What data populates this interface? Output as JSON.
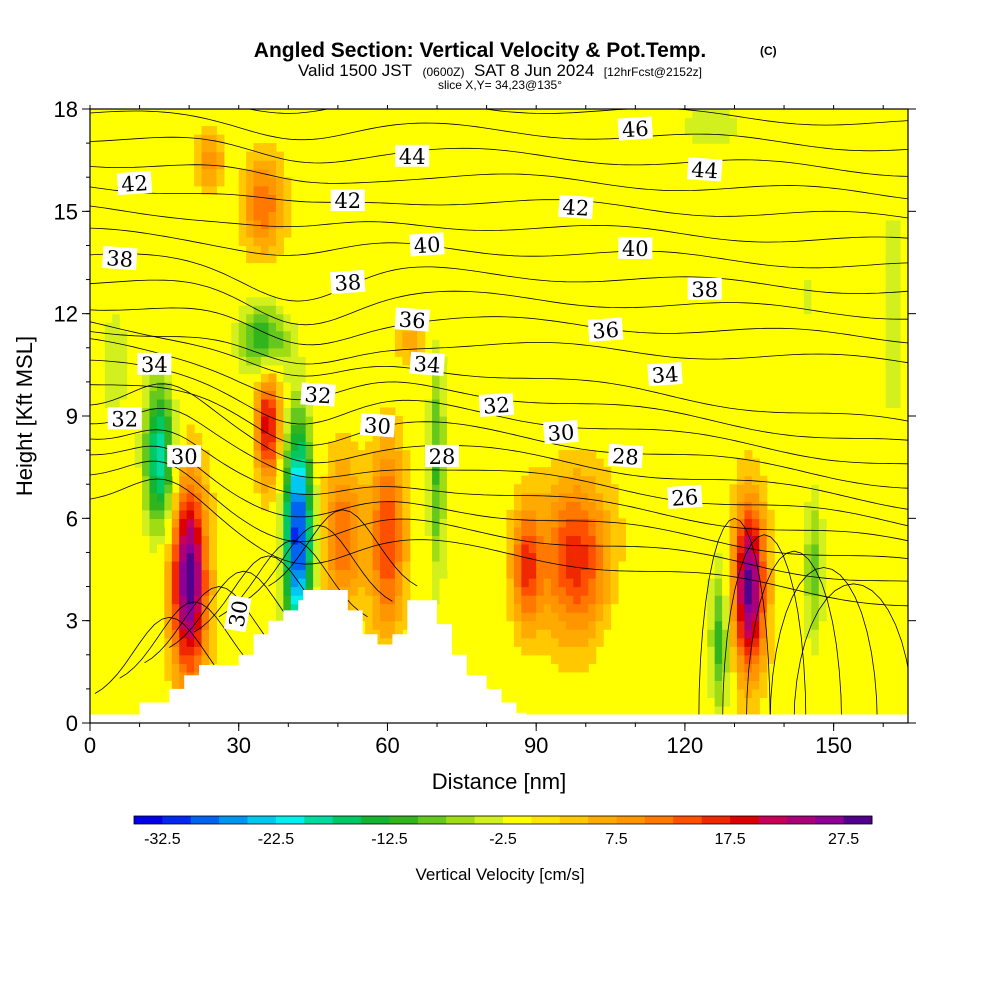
{
  "chart_data": {
    "type": "heatmap",
    "title": "Angled Section: Vertical Velocity & Pot.Temp.",
    "title_mark": "(C)",
    "subtitle_parts": [
      "Valid 1500 JST",
      "(0600Z)",
      "SAT 8 Jun 2024",
      "[12hrFcst@2152z]"
    ],
    "subtitle2": "slice X,Y= 34,23@135°",
    "xlabel": "Distance [nm]",
    "ylabel": "Height [Kft MSL]",
    "xlim": [
      0,
      165
    ],
    "ylim": [
      0,
      18
    ],
    "x_ticks": [
      "0",
      "30",
      "60",
      "90",
      "120",
      "150"
    ],
    "y_ticks": [
      "0",
      "3",
      "6",
      "9",
      "12",
      "15",
      "18"
    ],
    "colorbar": {
      "label": "Vertical Velocity [cm/s]",
      "ticks": [
        "-32.5",
        "-22.5",
        "-12.5",
        "-2.5",
        "7.5",
        "17.5",
        "27.5"
      ],
      "min": -35,
      "max": 30,
      "colors": [
        "#0000e8",
        "#0028f0",
        "#0064f0",
        "#0096f0",
        "#00c8f0",
        "#00f0f0",
        "#00dca0",
        "#00c864",
        "#14b432",
        "#32b41e",
        "#64c81e",
        "#a0dc14",
        "#d2f01e",
        "#ffff00",
        "#ffe600",
        "#ffc800",
        "#ffaa00",
        "#ff9600",
        "#ff7800",
        "#ff5000",
        "#f02800",
        "#dc0000",
        "#c8005a",
        "#aa0078",
        "#8c0096",
        "#50008c"
      ]
    },
    "background_w": 0.5,
    "w_cells": [
      {
        "x": 20,
        "y": 4.2,
        "rx": 3.5,
        "ry": 2.8,
        "w": 29
      },
      {
        "x": 36,
        "y": 8.8,
        "rx": 2.5,
        "ry": 1.7,
        "w": 19
      },
      {
        "x": 133,
        "y": 4.0,
        "rx": 3.2,
        "ry": 2.4,
        "w": 28
      },
      {
        "x": 98,
        "y": 4.8,
        "rx": 7,
        "ry": 2.3,
        "w": 16
      },
      {
        "x": 88,
        "y": 4.6,
        "rx": 3,
        "ry": 1.8,
        "w": 14
      },
      {
        "x": 60,
        "y": 5.4,
        "rx": 3.5,
        "ry": 2.8,
        "w": 15
      },
      {
        "x": 51,
        "y": 5.5,
        "rx": 4,
        "ry": 2.2,
        "w": 12
      },
      {
        "x": 35,
        "y": 15.2,
        "rx": 4,
        "ry": 1.4,
        "w": 12
      },
      {
        "x": 24,
        "y": 16.5,
        "rx": 3,
        "ry": 0.9,
        "w": 8
      },
      {
        "x": 65,
        "y": 11.2,
        "rx": 3,
        "ry": 0.8,
        "w": 6
      },
      {
        "x": 42,
        "y": 5.5,
        "rx": 2.8,
        "ry": 3.2,
        "w": -33
      },
      {
        "x": 14,
        "y": 7.8,
        "rx": 3,
        "ry": 2.2,
        "w": -20
      },
      {
        "x": 35,
        "y": 11.2,
        "rx": 5,
        "ry": 1.1,
        "w": -14
      },
      {
        "x": 70,
        "y": 7.5,
        "rx": 1.8,
        "ry": 3.5,
        "w": -11
      },
      {
        "x": 127,
        "y": 2.5,
        "rx": 2,
        "ry": 2.2,
        "w": -12
      },
      {
        "x": 146,
        "y": 4.5,
        "rx": 2,
        "ry": 2.5,
        "w": -9
      },
      {
        "x": 162,
        "y": 12,
        "rx": 3,
        "ry": 4,
        "w": -5
      },
      {
        "x": 125,
        "y": 17.5,
        "rx": 10,
        "ry": 1,
        "w": -4
      },
      {
        "x": 5,
        "y": 10.5,
        "rx": 4,
        "ry": 3,
        "w": -4
      },
      {
        "x": 110,
        "y": 2.5,
        "rx": 6,
        "ry": 2,
        "w": -3
      },
      {
        "x": 145,
        "y": 12.5,
        "rx": 2,
        "ry": 1,
        "w": -4
      }
    ],
    "theta_labels": [
      {
        "text": "46",
        "x": 110,
        "y": 17.4
      },
      {
        "text": "44",
        "x": 65,
        "y": 16.6
      },
      {
        "text": "44",
        "x": 124,
        "y": 16.2
      },
      {
        "text": "42",
        "x": 9,
        "y": 15.8
      },
      {
        "text": "42",
        "x": 52,
        "y": 15.3
      },
      {
        "text": "42",
        "x": 98,
        "y": 15.1
      },
      {
        "text": "40",
        "x": 68,
        "y": 14.0
      },
      {
        "text": "40",
        "x": 110,
        "y": 13.9
      },
      {
        "text": "38",
        "x": 6,
        "y": 13.6
      },
      {
        "text": "38",
        "x": 52,
        "y": 12.9
      },
      {
        "text": "38",
        "x": 124,
        "y": 12.7
      },
      {
        "text": "36",
        "x": 65,
        "y": 11.8
      },
      {
        "text": "36",
        "x": 104,
        "y": 11.5
      },
      {
        "text": "34",
        "x": 13,
        "y": 10.5
      },
      {
        "text": "34",
        "x": 68,
        "y": 10.5
      },
      {
        "text": "34",
        "x": 116,
        "y": 10.2
      },
      {
        "text": "32",
        "x": 7,
        "y": 8.9
      },
      {
        "text": "32",
        "x": 46,
        "y": 9.6
      },
      {
        "text": "32",
        "x": 82,
        "y": 9.3
      },
      {
        "text": "30",
        "x": 19,
        "y": 7.8
      },
      {
        "text": "30",
        "x": 58,
        "y": 8.7
      },
      {
        "text": "30",
        "x": 95,
        "y": 8.5
      },
      {
        "text": "28",
        "x": 71,
        "y": 7.8
      },
      {
        "text": "28",
        "x": 108,
        "y": 7.8
      },
      {
        "text": "26",
        "x": 120,
        "y": 6.6
      },
      {
        "text": "30",
        "x": 30,
        "y": 3.2
      }
    ],
    "theta_base": 25,
    "theta_step": 1,
    "terrain": [
      [
        10,
        0.6
      ],
      [
        16,
        0.6
      ],
      [
        16,
        1.0
      ],
      [
        19,
        1.0
      ],
      [
        19,
        1.4
      ],
      [
        22,
        1.4
      ],
      [
        22,
        1.7
      ],
      [
        30,
        1.7
      ],
      [
        30,
        2.0
      ],
      [
        33,
        2.0
      ],
      [
        33,
        2.6
      ],
      [
        36,
        2.6
      ],
      [
        36,
        3.0
      ],
      [
        39,
        3.0
      ],
      [
        39,
        3.3
      ],
      [
        42,
        3.3
      ],
      [
        42,
        3.6
      ],
      [
        43,
        3.6
      ],
      [
        43,
        3.9
      ],
      [
        52,
        3.9
      ],
      [
        52,
        3.3
      ],
      [
        55,
        3.3
      ],
      [
        55,
        2.6
      ],
      [
        58,
        2.6
      ],
      [
        58,
        2.3
      ],
      [
        61,
        2.3
      ],
      [
        61,
        2.6
      ],
      [
        64,
        2.6
      ],
      [
        64,
        3.6
      ],
      [
        70,
        3.6
      ],
      [
        70,
        2.9
      ],
      [
        73,
        2.9
      ],
      [
        73,
        2.0
      ],
      [
        76,
        2.0
      ],
      [
        76,
        1.4
      ],
      [
        80,
        1.4
      ],
      [
        80,
        1.0
      ],
      [
        83,
        1.0
      ],
      [
        83,
        0.6
      ],
      [
        86,
        0.6
      ],
      [
        86,
        0.3
      ],
      [
        88,
        0.3
      ]
    ]
  }
}
